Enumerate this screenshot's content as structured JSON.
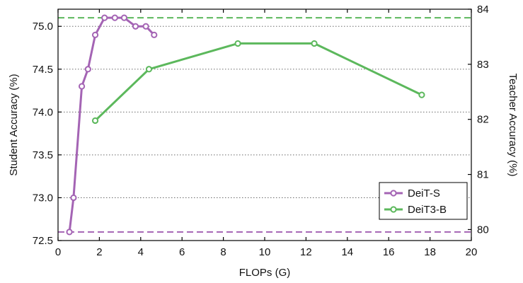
{
  "chart_data": {
    "type": "line",
    "xlabel": "FLOPs (G)",
    "ylabel_left": "Student Accuracy (%)",
    "ylabel_right": "Teacher Accuracy (%)",
    "xlim": [
      0,
      20
    ],
    "ylim_left": [
      72.5,
      75.2
    ],
    "ylim_right": [
      79.8,
      84
    ],
    "x_ticks": [
      0,
      2,
      4,
      6,
      8,
      10,
      12,
      14,
      16,
      18,
      20
    ],
    "y_ticks_left": [
      72.5,
      73.0,
      73.5,
      74.0,
      74.5,
      75.0
    ],
    "y_ticks_right": [
      80,
      81,
      82,
      83,
      84
    ],
    "grid": "horizontal dotted",
    "legend_position": "lower-right",
    "series": [
      {
        "name": "DeiT-S",
        "color": "#a464b4",
        "axis": "left",
        "x": [
          0.55,
          0.75,
          1.15,
          1.45,
          1.8,
          2.25,
          2.75,
          3.2,
          3.75,
          4.25,
          4.65
        ],
        "y": [
          72.6,
          73.0,
          74.3,
          74.5,
          74.9,
          75.1,
          75.1,
          75.1,
          75.0,
          75.0,
          74.9
        ]
      },
      {
        "name": "DeiT3-B",
        "color": "#5cb85c",
        "axis": "left",
        "x": [
          1.8,
          4.4,
          8.7,
          12.4,
          17.6
        ],
        "y": [
          73.9,
          74.5,
          74.8,
          74.8,
          74.2
        ]
      }
    ],
    "reference_lines": [
      {
        "color": "#5cb85c",
        "axis": "left",
        "y": 75.1,
        "style": "dashed"
      },
      {
        "color": "#a464b4",
        "axis": "left",
        "y": 72.6,
        "style": "dashed"
      }
    ]
  }
}
